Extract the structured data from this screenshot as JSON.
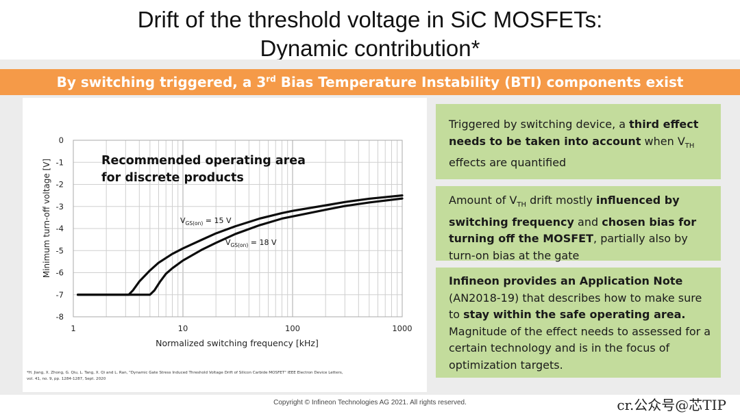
{
  "slide": {
    "title_line1": "Drift of the threshold voltage  in SiC MOSFETs:",
    "title_line2": "Dynamic contribution*",
    "banner_pre": "By switching triggered, a 3",
    "banner_sup": "rd",
    "banner_post": " Bias Temperature Instability (BTI) components exist",
    "footnote_line1": "*H. Jiang, X. Zhong, G. Qiu, L. Tang, X. Qi and L. Ran, \"Dynamic Gate Stress Induced Threshold Voltage Drift of Silicon Carbide MOSFET\" IEEE Electron Device Letters,",
    "footnote_line2": "vol. 41, no. 9, pp. 1284-1287, Sept. 2020",
    "copyright": "Copyright © Infineon Technologies AG 2021. All rights reserved.",
    "watermark": "cr.公众号@芯TIP"
  },
  "boxes": {
    "box1": {
      "t1": "Triggered by switching device, a ",
      "b1": "third effect needs to be taken into account",
      "t2": " when V",
      "sub": "TH",
      "t3": " effects are quantified"
    },
    "box2": {
      "t1": "Amount of V",
      "sub": "TH",
      "t2": " drift mostly ",
      "b1": "influenced by switching frequency",
      "t3": " and ",
      "b2": "chosen bias for turning off the MOSFET",
      "t4": ", partially also by turn-on bias at the gate"
    },
    "box3": {
      "b1": "Infineon provides an Application Note",
      "t1": " (AN2018-19) that describes how to make sure to ",
      "b2": "stay within the safe operating area.",
      "t2": "Magnitude of the effect needs to assessed for a certain technology and is in the focus of optimization targets."
    }
  },
  "chart_data": {
    "type": "line",
    "xscale": "log",
    "xlim": [
      1,
      1000
    ],
    "ylim": [
      -8,
      0
    ],
    "x_ticks": [
      1,
      10,
      100,
      1000
    ],
    "y_ticks": [
      0,
      -1,
      -2,
      -3,
      -4,
      -5,
      -6,
      -7,
      -8
    ],
    "xlabel": "Normalized switching frequency [kHz]",
    "ylabel": "Minimum turn-off voltage [V]",
    "grid": true,
    "annotation": {
      "line1": "Recommended operating area",
      "line2": "for discrete products"
    },
    "series": [
      {
        "name": "VGS(on) = 15 V",
        "label_main": "V",
        "label_sub": "GS(on)",
        "label_tail": " = 15 V",
        "points": [
          [
            1.1,
            -7.0
          ],
          [
            3.2,
            -7.0
          ],
          [
            3.5,
            -6.8
          ],
          [
            4,
            -6.4
          ],
          [
            5,
            -5.9
          ],
          [
            6,
            -5.55
          ],
          [
            8,
            -5.15
          ],
          [
            10,
            -4.9
          ],
          [
            15,
            -4.5
          ],
          [
            20,
            -4.22
          ],
          [
            30,
            -3.9
          ],
          [
            50,
            -3.55
          ],
          [
            80,
            -3.3
          ],
          [
            100,
            -3.2
          ],
          [
            200,
            -2.95
          ],
          [
            300,
            -2.8
          ],
          [
            500,
            -2.65
          ],
          [
            1000,
            -2.5
          ]
        ]
      },
      {
        "name": "VGS(on) = 18 V",
        "label_main": "V",
        "label_sub": "GS(on)",
        "label_tail": " = 18 V",
        "points": [
          [
            1.1,
            -7.0
          ],
          [
            5.0,
            -7.0
          ],
          [
            5.5,
            -6.8
          ],
          [
            6.2,
            -6.4
          ],
          [
            7,
            -6.05
          ],
          [
            8,
            -5.8
          ],
          [
            10,
            -5.45
          ],
          [
            15,
            -4.95
          ],
          [
            20,
            -4.65
          ],
          [
            30,
            -4.25
          ],
          [
            50,
            -3.85
          ],
          [
            80,
            -3.55
          ],
          [
            100,
            -3.45
          ],
          [
            200,
            -3.15
          ],
          [
            300,
            -2.98
          ],
          [
            500,
            -2.82
          ],
          [
            1000,
            -2.64
          ]
        ]
      }
    ]
  }
}
